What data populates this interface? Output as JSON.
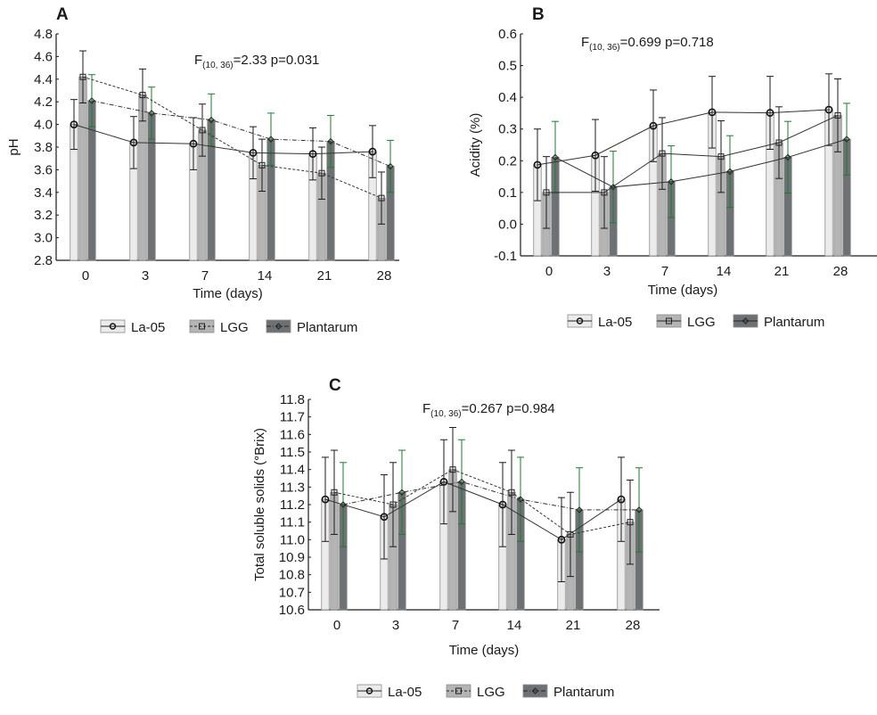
{
  "colors": {
    "La-05": "#ebebeb",
    "LGG": "#b4b4b4",
    "Plantarum": "#6e7174",
    "bar_stroke": "#8c8c8c",
    "error_la05": "#1a1a1a",
    "error_lgg": "#1a1a1a",
    "error_plantarum": "#1f7a32",
    "line": "#333333"
  },
  "chart_data": [
    {
      "id": "A",
      "type": "bar",
      "panel_label": "A",
      "title": "",
      "xlabel": "Time (days)",
      "ylabel": "pH",
      "ylim": [
        2.8,
        4.8
      ],
      "yticks": [
        "2.8",
        "3.0",
        "3.2",
        "3.4",
        "3.6",
        "3.8",
        "4.0",
        "4.2",
        "4.4",
        "4.6",
        "4.8"
      ],
      "categories": [
        "0",
        "3",
        "7",
        "14",
        "21",
        "28"
      ],
      "stat_prefix": "F",
      "stat_sub": "(10, 36)",
      "stat_rest": "=2.33 p=0.031",
      "series": [
        {
          "name": "La-05",
          "marker": "circle",
          "line": "solid",
          "values": [
            4.0,
            3.84,
            3.83,
            3.75,
            3.74,
            3.76
          ],
          "error": [
            0.22,
            0.23,
            0.23,
            0.23,
            0.23,
            0.23
          ]
        },
        {
          "name": "LGG",
          "marker": "square",
          "line": "dashed",
          "values": [
            4.42,
            4.26,
            3.95,
            3.64,
            3.57,
            3.35
          ],
          "error": [
            0.23,
            0.23,
            0.23,
            0.23,
            0.23,
            0.23
          ]
        },
        {
          "name": "Plantarum",
          "marker": "diamond",
          "line": "dashdot",
          "values": [
            4.21,
            4.1,
            4.04,
            3.87,
            3.85,
            3.63
          ],
          "error": [
            0.23,
            0.23,
            0.23,
            0.23,
            0.23,
            0.23
          ]
        }
      ],
      "legend": "bottom"
    },
    {
      "id": "B",
      "type": "bar",
      "panel_label": "B",
      "title": "",
      "xlabel": "Time (days)",
      "ylabel": "Acidity (%)",
      "ylim": [
        -0.1,
        0.6
      ],
      "yticks": [
        "-0.1",
        "0.0",
        "0.1",
        "0.2",
        "0.3",
        "0.4",
        "0.5",
        "0.6"
      ],
      "categories": [
        "0",
        "3",
        "7",
        "14",
        "21",
        "28"
      ],
      "stat_prefix": "F",
      "stat_sub": "(10, 36)",
      "stat_rest": "=0.699 p=0.718",
      "series": [
        {
          "name": "La-05",
          "marker": "circle",
          "line": "solid",
          "values": [
            0.187,
            0.217,
            0.31,
            0.353,
            0.351,
            0.361
          ],
          "error": [
            0.113,
            0.113,
            0.113,
            0.113,
            0.115,
            0.113
          ]
        },
        {
          "name": "LGG",
          "marker": "square",
          "line": "solid",
          "values": [
            0.1,
            0.1,
            0.223,
            0.213,
            0.257,
            0.343
          ],
          "error": [
            0.113,
            0.113,
            0.113,
            0.113,
            0.113,
            0.115
          ]
        },
        {
          "name": "Plantarum",
          "marker": "diamond",
          "line": "solid",
          "values": [
            0.211,
            0.117,
            0.134,
            0.166,
            0.211,
            0.268
          ],
          "error": [
            0.113,
            0.113,
            0.113,
            0.113,
            0.113,
            0.113
          ]
        }
      ],
      "legend": "bottom"
    },
    {
      "id": "C",
      "type": "bar",
      "panel_label": "C",
      "title": "",
      "xlabel": "Time (days)",
      "ylabel": "Total soluble solids (°Brix)",
      "ylim": [
        10.6,
        11.8
      ],
      "yticks": [
        "10.6",
        "10.7",
        "10.8",
        "10.9",
        "11.0",
        "11.1",
        "11.2",
        "11.3",
        "11.4",
        "11.5",
        "11.6",
        "11.7",
        "11.8"
      ],
      "categories": [
        "0",
        "3",
        "7",
        "14",
        "21",
        "28"
      ],
      "stat_prefix": "F",
      "stat_sub": "(10, 36)",
      "stat_rest": "=0.267 p=0.984",
      "series": [
        {
          "name": "La-05",
          "marker": "circle",
          "line": "solid",
          "values": [
            11.23,
            11.13,
            11.33,
            11.2,
            11.0,
            11.23
          ],
          "error": [
            0.24,
            0.24,
            0.24,
            0.24,
            0.24,
            0.24
          ]
        },
        {
          "name": "LGG",
          "marker": "square",
          "line": "dashed",
          "values": [
            11.27,
            11.2,
            11.4,
            11.27,
            11.03,
            11.1
          ],
          "error": [
            0.24,
            0.24,
            0.24,
            0.24,
            0.24,
            0.24
          ]
        },
        {
          "name": "Plantarum",
          "marker": "diamond",
          "line": "dashdot",
          "values": [
            11.2,
            11.27,
            11.33,
            11.23,
            11.17,
            11.17
          ],
          "error": [
            0.24,
            0.24,
            0.24,
            0.24,
            0.24,
            0.24
          ]
        }
      ],
      "legend": "bottom"
    }
  ]
}
